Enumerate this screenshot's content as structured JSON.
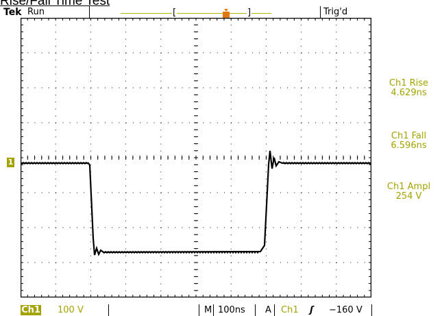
{
  "page_title": "Rise/Fall Time Test",
  "header": {
    "brand": "Tek",
    "run_state": "Run",
    "trigger_status": "Trig'd",
    "record_open": "[",
    "record_close": "]"
  },
  "markers": {
    "channel_marker_label": "1",
    "trigger_position_glyph": "T"
  },
  "measurements": [
    {
      "label": "Ch1 Rise",
      "value": "4.629ns"
    },
    {
      "label": "Ch1 Fall",
      "value": "6.596ns"
    },
    {
      "label": "Ch1 Ampl",
      "value": "254 V"
    }
  ],
  "status_bar": {
    "channel": "Ch1",
    "volts_per_div": "100 V",
    "timebase_mode": "M",
    "time_per_div": "100ns",
    "trigger_mode": "A",
    "trigger_source": "Ch1",
    "trigger_slope_glyph": "ʃ",
    "trigger_level": "−160 V"
  },
  "colors": {
    "channel": "#a3a300",
    "trigger_marker": "#e07810",
    "trace": "#000000",
    "grid": "#000000"
  }
}
